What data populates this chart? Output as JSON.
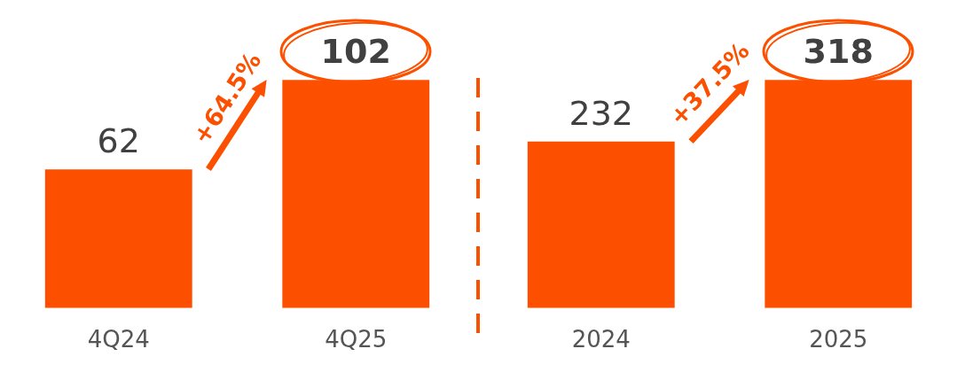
{
  "chart_data": [
    {
      "type": "bar",
      "categories": [
        "4Q24",
        "4Q25"
      ],
      "values": [
        62,
        102
      ],
      "color": "#fc5000",
      "data_labels": true,
      "grid": false,
      "legend": false,
      "annotations": [
        "+64.5%"
      ]
    },
    {
      "type": "bar",
      "categories": [
        "2024",
        "2025"
      ],
      "values": [
        232,
        318
      ],
      "color": "#fc5000",
      "data_labels": true,
      "grid": false,
      "legend": false,
      "annotations": [
        "+37.5%"
      ]
    }
  ]
}
